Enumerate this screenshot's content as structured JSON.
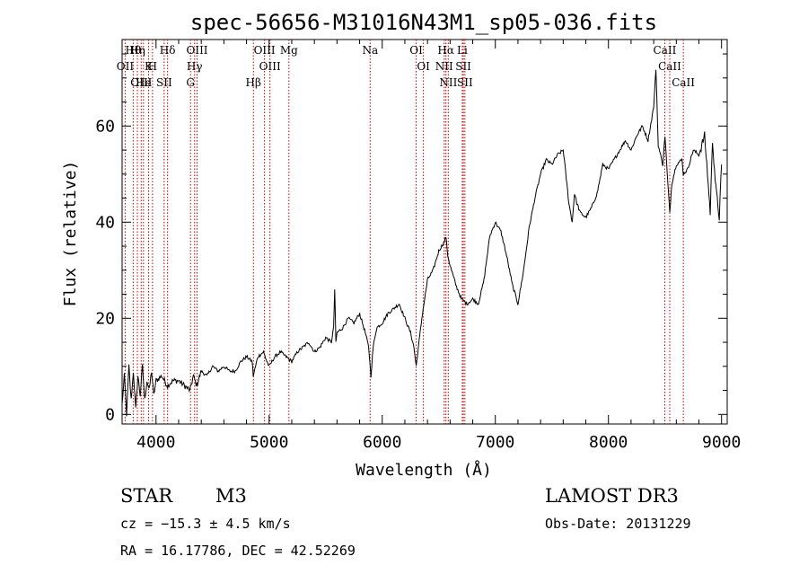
{
  "chart_data": {
    "type": "line",
    "title": "spec-56656-M31016N43M1_sp05-036.fits",
    "xlabel": "Wavelength (Å)",
    "ylabel": "Flux (relative)",
    "xlim": [
      3700,
      9050
    ],
    "ylim": [
      -2,
      78
    ],
    "x_ticks": [
      4000,
      5000,
      6000,
      7000,
      8000,
      9000
    ],
    "y_ticks": [
      0,
      20,
      40,
      60
    ],
    "grid": false,
    "series": [
      {
        "name": "flux",
        "x": [
          3700,
          3720,
          3740,
          3760,
          3780,
          3800,
          3820,
          3840,
          3860,
          3880,
          3900,
          3920,
          3940,
          3960,
          3980,
          4000,
          4050,
          4100,
          4150,
          4200,
          4250,
          4300,
          4330,
          4360,
          4400,
          4450,
          4500,
          4550,
          4600,
          4650,
          4700,
          4750,
          4800,
          4850,
          4860,
          4880,
          4900,
          4950,
          4980,
          5000,
          5050,
          5100,
          5150,
          5200,
          5250,
          5300,
          5350,
          5400,
          5450,
          5500,
          5550,
          5570,
          5580,
          5590,
          5600,
          5650,
          5700,
          5750,
          5800,
          5850,
          5880,
          5900,
          5920,
          5950,
          6000,
          6050,
          6100,
          6150,
          6200,
          6250,
          6280,
          6300,
          6350,
          6400,
          6450,
          6500,
          6550,
          6563,
          6580,
          6600,
          6650,
          6700,
          6750,
          6800,
          6850,
          6900,
          6950,
          7000,
          7050,
          7100,
          7150,
          7200,
          7250,
          7300,
          7350,
          7400,
          7450,
          7500,
          7550,
          7600,
          7610,
          7650,
          7680,
          7700,
          7720,
          7750,
          7800,
          7850,
          7900,
          7950,
          8000,
          8050,
          8100,
          8150,
          8200,
          8250,
          8300,
          8350,
          8400,
          8420,
          8440,
          8460,
          8480,
          8500,
          8520,
          8542,
          8560,
          8600,
          8650,
          8662,
          8700,
          8750,
          8800,
          8850,
          8870,
          8900,
          8920,
          8950,
          8980,
          9000
        ],
        "y": [
          2,
          8,
          0,
          10,
          3,
          9,
          1,
          8,
          4,
          10,
          3,
          7,
          5,
          9,
          4,
          7,
          8,
          6,
          7,
          7,
          6,
          5,
          8,
          6,
          9,
          8,
          10,
          9,
          10,
          9,
          9,
          11,
          12,
          11,
          8,
          10,
          12,
          13,
          11,
          10,
          12,
          13,
          12,
          11,
          13,
          14,
          15,
          13,
          14,
          16,
          15,
          18,
          26,
          15,
          17,
          18,
          20,
          19,
          21,
          17,
          14,
          8,
          14,
          18,
          19,
          21,
          22,
          23,
          20,
          17,
          14,
          10,
          20,
          28,
          30,
          34,
          36,
          37,
          33,
          31,
          27,
          24,
          23,
          24,
          23,
          28,
          37,
          40,
          38,
          33,
          27,
          23,
          30,
          39,
          45,
          50,
          53,
          52,
          54,
          55,
          53,
          44,
          40,
          46,
          44,
          42,
          41,
          43,
          46,
          52,
          51,
          53,
          55,
          57,
          55,
          58,
          60,
          57,
          64,
          72,
          56,
          54,
          52,
          58,
          50,
          42,
          48,
          52,
          53,
          50,
          51,
          55,
          54,
          58,
          52,
          42,
          57,
          47,
          41,
          52
        ]
      }
    ],
    "lines": [
      {
        "label": "Hθ",
        "x": 3798
      },
      {
        "label": "OII",
        "x": 3727
      },
      {
        "label": "OIII",
        "x": 3869
      },
      {
        "label": "K",
        "x": 3934
      },
      {
        "label": "H",
        "x": 3969
      },
      {
        "label": "He",
        "x": 3889
      },
      {
        "label": "Hη",
        "x": 3835
      },
      {
        "label": "Hδ",
        "x": 4102
      },
      {
        "label": "SII",
        "x": 4072
      },
      {
        "label": "OIII",
        "x": 4363
      },
      {
        "label": "Hγ",
        "x": 4341
      },
      {
        "label": "G",
        "x": 4305
      },
      {
        "label": "OIII",
        "x": 4959
      },
      {
        "label": "OIII",
        "x": 5007
      },
      {
        "label": "Hβ",
        "x": 4861
      },
      {
        "label": "Mg",
        "x": 5175
      },
      {
        "label": "Na",
        "x": 5893
      },
      {
        "label": "OI",
        "x": 6300
      },
      {
        "label": "OI",
        "x": 6364
      },
      {
        "label": "Hα",
        "x": 6563
      },
      {
        "label": "NII",
        "x": 6548
      },
      {
        "label": "NII",
        "x": 6584
      },
      {
        "label": "SII",
        "x": 6717
      },
      {
        "label": "SII",
        "x": 6731
      },
      {
        "label": "Li",
        "x": 6708
      },
      {
        "label": "CaII",
        "x": 8498
      },
      {
        "label": "CaII",
        "x": 8542
      },
      {
        "label": "CaII",
        "x": 8662
      }
    ]
  },
  "info": {
    "object_class": "STAR",
    "subclass": "M3",
    "survey": "LAMOST DR3",
    "redshift_text": "cz = −15.3 ± 4.5 km/s",
    "obs_date": "Obs-Date: 20131229",
    "coords": "RA =  16.17786, DEC =  42.52269"
  }
}
